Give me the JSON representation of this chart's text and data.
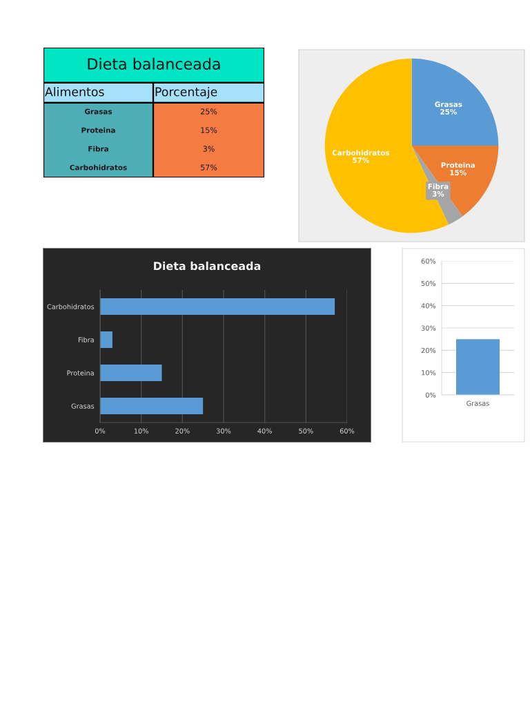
{
  "chart_data": [
    {
      "type": "other",
      "title": "Dieta balanceada",
      "annotations": [
        "Alimentos",
        "Porcentaje",
        "Grasas",
        "25%",
        "Proteina",
        "15%",
        "Fibra",
        "3%",
        "Carbohidratos",
        "57%"
      ]
    },
    {
      "type": "pie",
      "categories": [
        "Grasas",
        "Proteina",
        "Fibra",
        "Carbohidratos"
      ],
      "values": [
        25,
        15,
        3,
        57
      ],
      "colors": [
        "#5b9bd5",
        "#ed7d31",
        "#a5a5a5",
        "#ffc000"
      ],
      "value_labels": [
        "25%",
        "15%",
        "3%",
        "57%"
      ]
    },
    {
      "type": "bar",
      "orientation": "horizontal",
      "title": "Dieta balanceada",
      "categories": [
        "Carbohidratos",
        "Fibra",
        "Proteina",
        "Grasas"
      ],
      "values": [
        57,
        3,
        15,
        25
      ],
      "color": "#5b9bd5",
      "xlim": [
        0,
        60
      ],
      "xticks": [
        {
          "value": 0,
          "label": "0%"
        },
        {
          "value": 10,
          "label": "10%"
        },
        {
          "value": 20,
          "label": "20%"
        },
        {
          "value": 30,
          "label": "30%"
        },
        {
          "value": 40,
          "label": "40%"
        },
        {
          "value": 50,
          "label": "50%"
        },
        {
          "value": 60,
          "label": "60%"
        }
      ],
      "grid": "x"
    },
    {
      "type": "bar",
      "categories": [
        "Grasas"
      ],
      "values": [
        25
      ],
      "color": "#5b9bd5",
      "ylim": [
        0,
        60
      ],
      "yticks": [
        {
          "value": 0,
          "label": "0%"
        },
        {
          "value": 10,
          "label": "10%"
        },
        {
          "value": 20,
          "label": "20%"
        },
        {
          "value": 30,
          "label": "30%"
        },
        {
          "value": 40,
          "label": "40%"
        },
        {
          "value": 50,
          "label": "50%"
        },
        {
          "value": 60,
          "label": "60%"
        }
      ],
      "grid": "y"
    }
  ]
}
